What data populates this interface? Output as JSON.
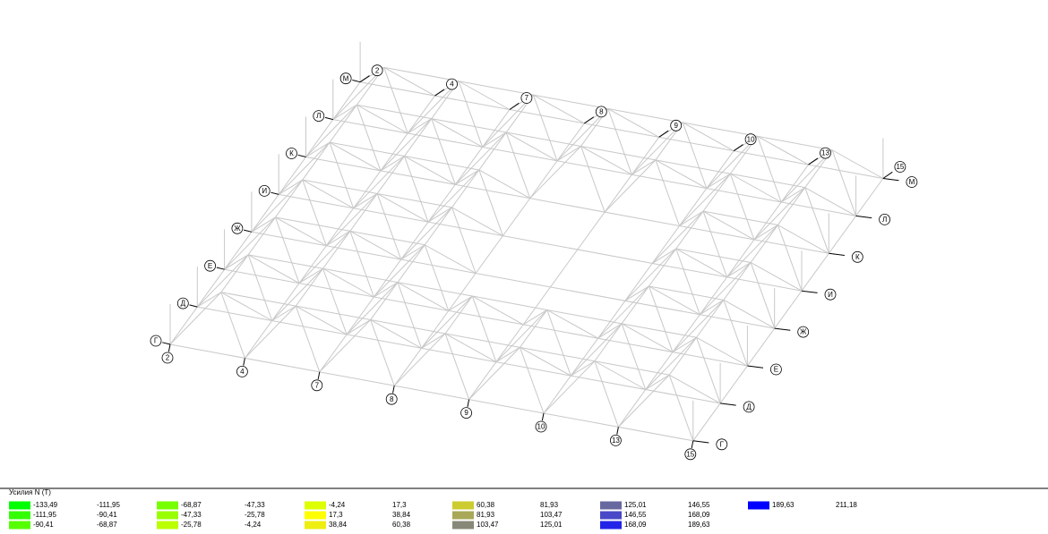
{
  "axes": {
    "numbers": [
      "2",
      "4",
      "7",
      "8",
      "9",
      "10",
      "13",
      "15"
    ],
    "letters": [
      "Г",
      "Д",
      "Е",
      "Ж",
      "И",
      "К",
      "Л",
      "М"
    ]
  },
  "legend": {
    "title": "Усилия  N (Т)",
    "items": [
      {
        "color": "#00ff00",
        "from": "-133,49",
        "to": "-111,95"
      },
      {
        "color": "#33ff00",
        "from": "-111,95",
        "to": "-90,41"
      },
      {
        "color": "#55ff00",
        "from": "-90,41",
        "to": "-68,87"
      },
      {
        "color": "#77ff00",
        "from": "-68,87",
        "to": "-47,33"
      },
      {
        "color": "#99ff00",
        "from": "-47,33",
        "to": "-25,78"
      },
      {
        "color": "#bbff00",
        "from": "-25,78",
        "to": "-4,24"
      },
      {
        "color": "#ddff00",
        "from": "-4,24",
        "to": "17,3"
      },
      {
        "color": "#ffff00",
        "from": "17,3",
        "to": "38,84"
      },
      {
        "color": "#eeee10",
        "from": "38,84",
        "to": "60,38"
      },
      {
        "color": "#cccc30",
        "from": "60,38",
        "to": "81,93"
      },
      {
        "color": "#a8a858",
        "from": "81,93",
        "to": "103,47"
      },
      {
        "color": "#888878",
        "from": "103,47",
        "to": "125,01"
      },
      {
        "color": "#6868a0",
        "from": "125,01",
        "to": "146,55"
      },
      {
        "color": "#4848c8",
        "from": "146,55",
        "to": "168,09"
      },
      {
        "color": "#2424e8",
        "from": "168,09",
        "to": "189,63"
      },
      {
        "color": "#0000ff",
        "from": "189,63",
        "to": "211,18"
      }
    ]
  }
}
